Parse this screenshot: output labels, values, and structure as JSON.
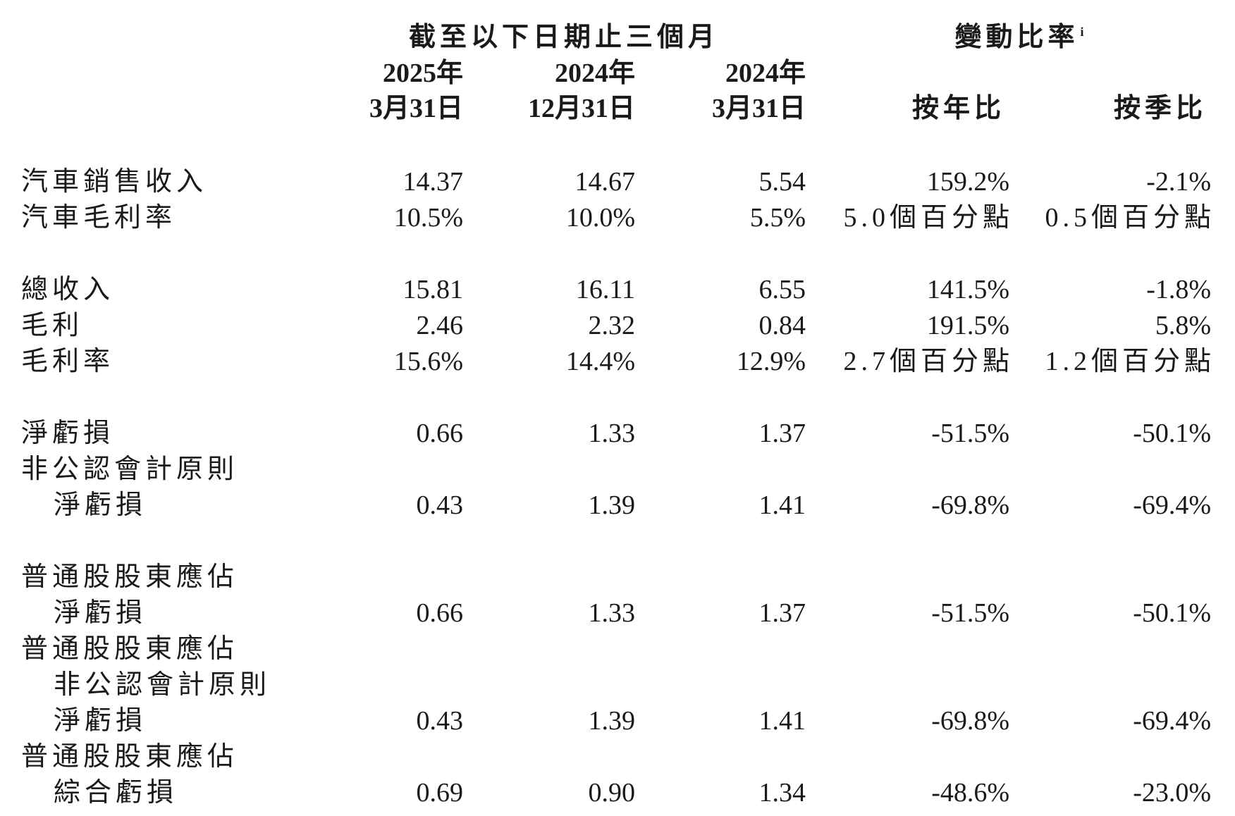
{
  "header": {
    "period_title": "截至以下日期止三個月",
    "change_title": "變動比率",
    "change_note": "i",
    "columns": [
      [
        "2025年",
        "3月31日"
      ],
      [
        "2024年",
        "12月31日"
      ],
      [
        "2024年",
        "3月31日"
      ],
      [
        "按年比"
      ],
      [
        "按季比"
      ]
    ]
  },
  "sections": [
    [
      {
        "label": [
          "汽車銷售收入"
        ],
        "values": [
          "14.37",
          "14.67",
          "5.54",
          "159.2%",
          "-2.1%"
        ]
      },
      {
        "label": [
          "汽車毛利率"
        ],
        "values": [
          "10.5%",
          "10.0%",
          "5.5%",
          "5.0個百分點",
          "0.5個百分點"
        ]
      }
    ],
    [
      {
        "label": [
          "總收入"
        ],
        "values": [
          "15.81",
          "16.11",
          "6.55",
          "141.5%",
          "-1.8%"
        ]
      },
      {
        "label": [
          "毛利"
        ],
        "values": [
          "2.46",
          "2.32",
          "0.84",
          "191.5%",
          "5.8%"
        ]
      },
      {
        "label": [
          "毛利率"
        ],
        "values": [
          "15.6%",
          "14.4%",
          "12.9%",
          "2.7個百分點",
          "1.2個百分點"
        ]
      }
    ],
    [
      {
        "label": [
          "淨虧損"
        ],
        "values": [
          "0.66",
          "1.33",
          "1.37",
          "-51.5%",
          "-50.1%"
        ]
      },
      {
        "label": [
          "非公認會計原則",
          "淨虧損"
        ],
        "values": [
          "0.43",
          "1.39",
          "1.41",
          "-69.8%",
          "-69.4%"
        ]
      }
    ],
    [
      {
        "label": [
          "普通股股東應佔",
          "淨虧損"
        ],
        "values": [
          "0.66",
          "1.33",
          "1.37",
          "-51.5%",
          "-50.1%"
        ]
      },
      {
        "label": [
          "普通股股東應佔",
          "非公認會計原則",
          "淨虧損"
        ],
        "values": [
          "0.43",
          "1.39",
          "1.41",
          "-69.8%",
          "-69.4%"
        ]
      },
      {
        "label": [
          "普通股股東應佔",
          "綜合虧損"
        ],
        "values": [
          "0.69",
          "0.90",
          "1.34",
          "-48.6%",
          "-23.0%"
        ]
      }
    ]
  ]
}
